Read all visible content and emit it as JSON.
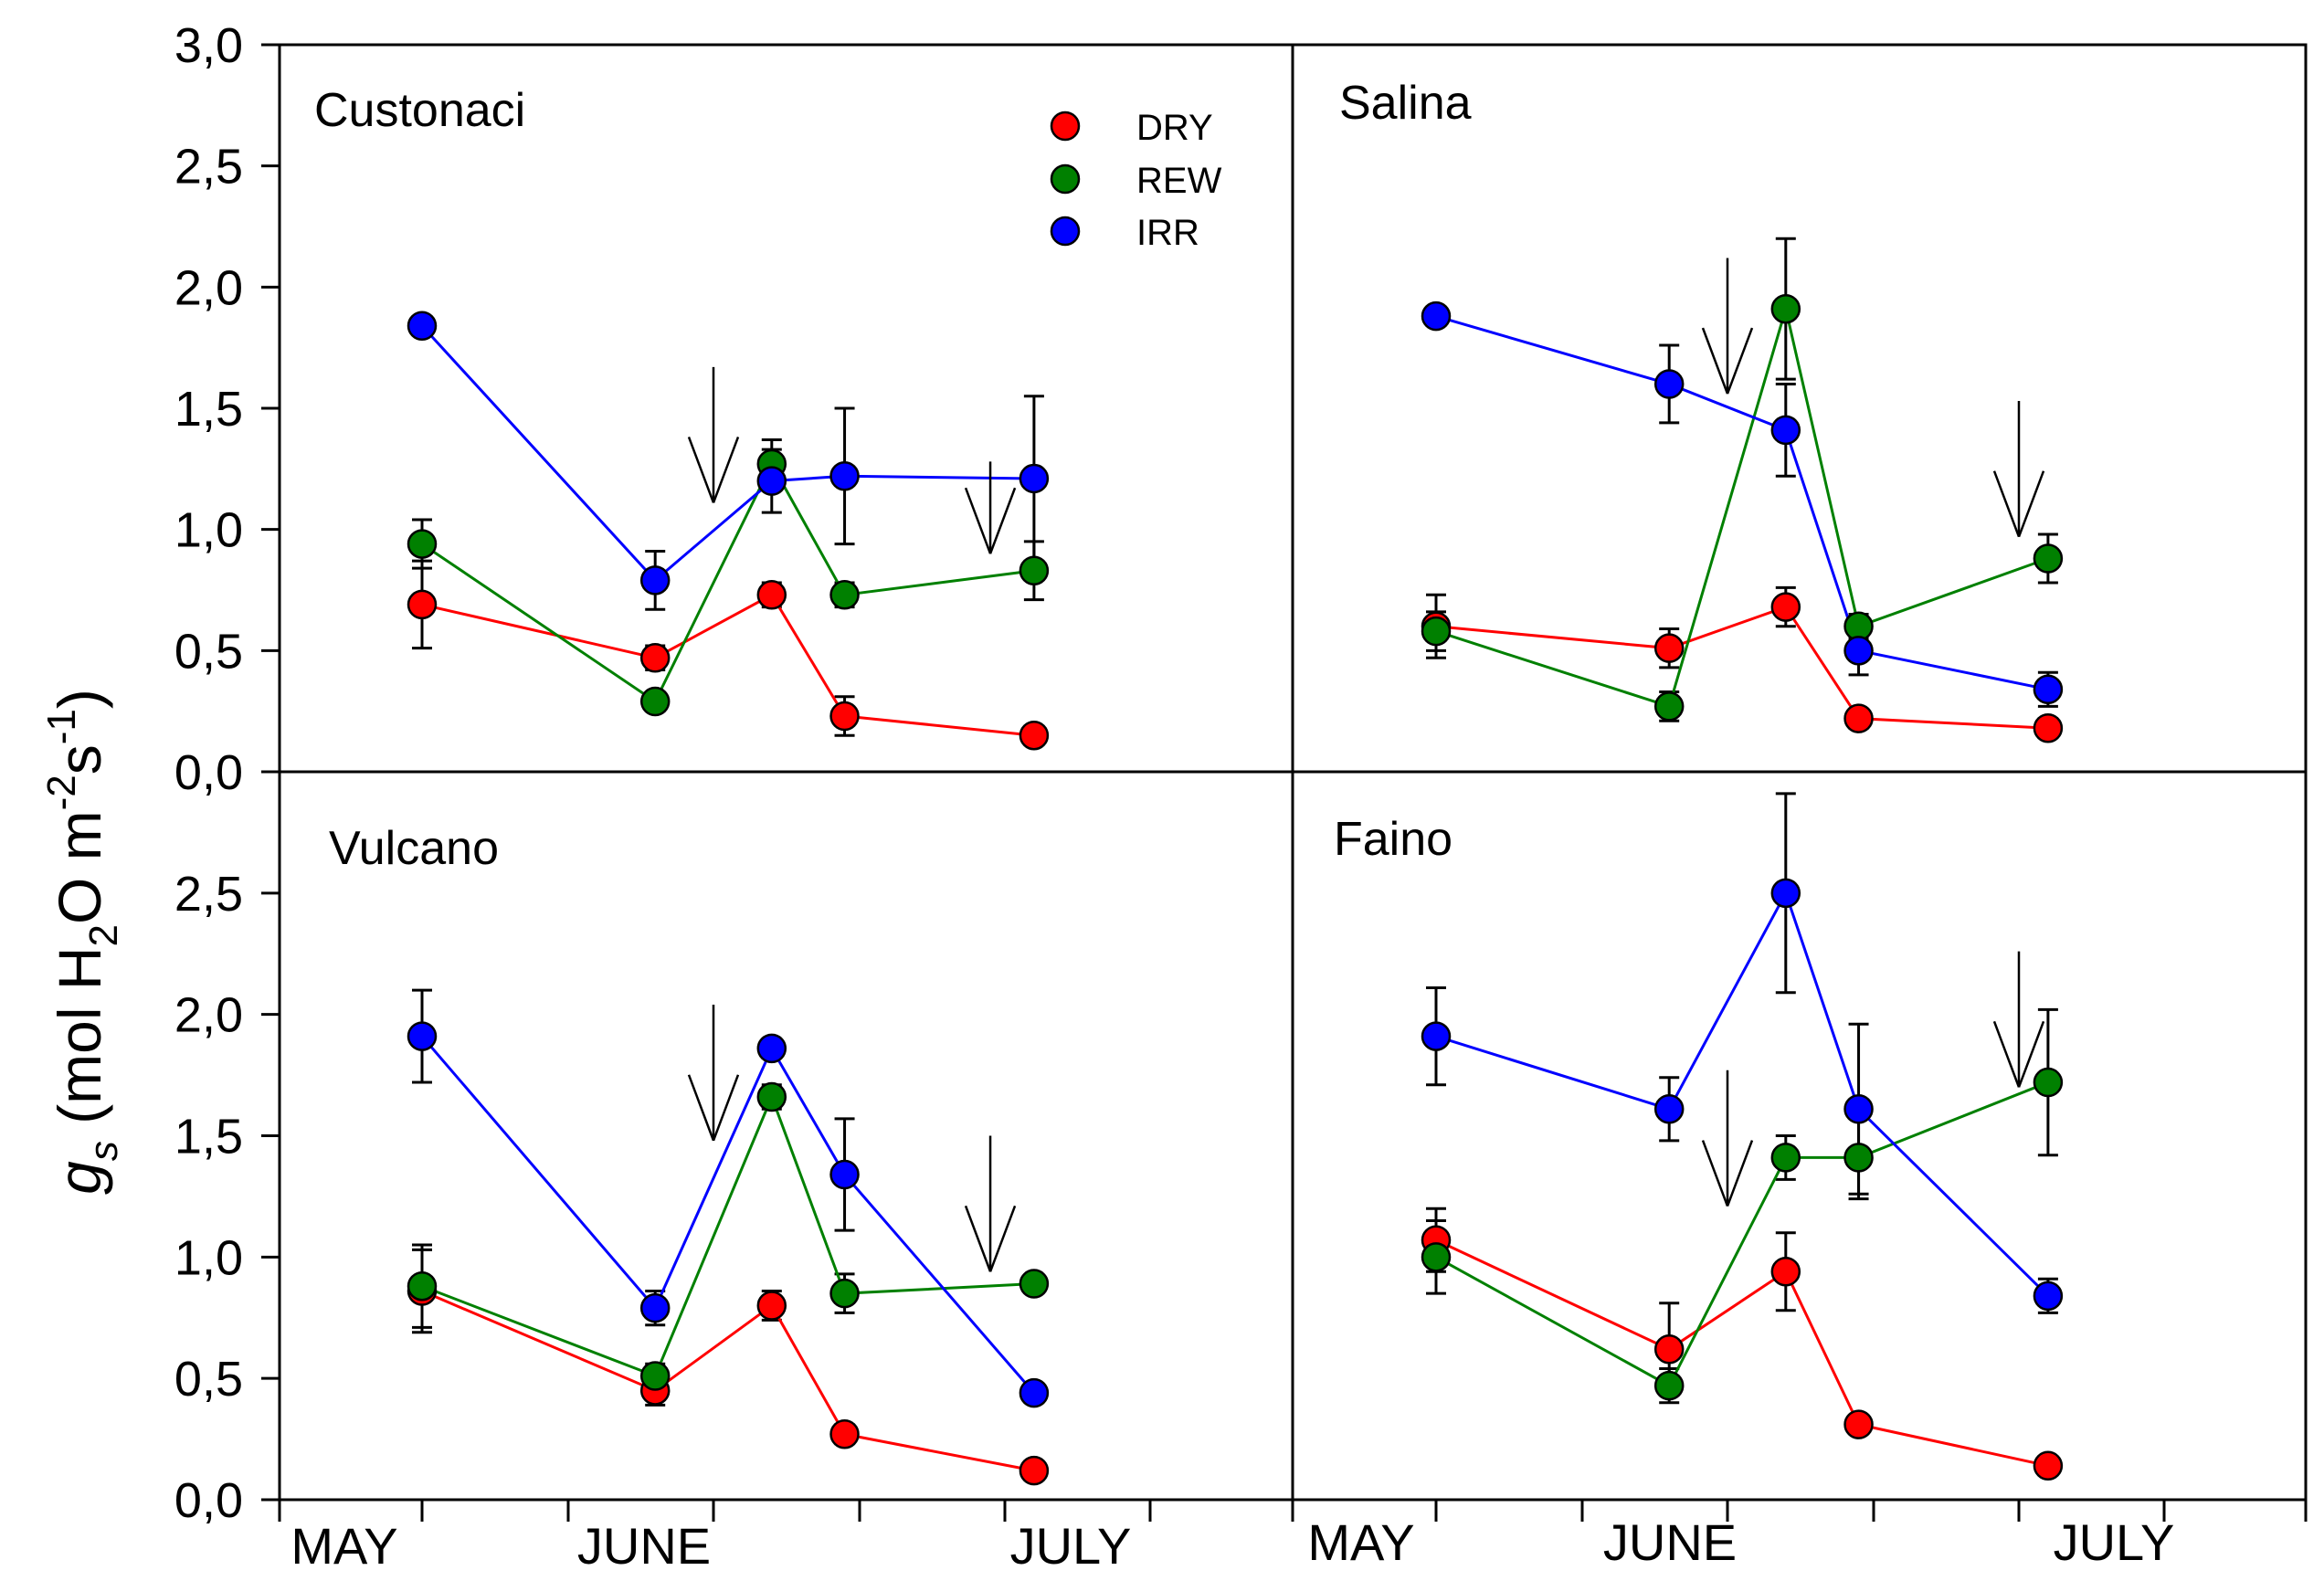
{
  "figure": {
    "ylabel_main": "g",
    "ylabel_sub": "s",
    "ylabel_rest_1": " (mol H",
    "ylabel_sub2": "2",
    "ylabel_rest_2": "O m",
    "ylabel_sup1": "-2",
    "ylabel_rest_3": "s",
    "ylabel_sup2": "-1",
    "ylabel_rest_4": ")",
    "month_labels": [
      "MAY",
      "JUNE",
      "JULY"
    ]
  },
  "legend": [
    {
      "name": "DRY",
      "color": "#ff0000"
    },
    {
      "name": "REW",
      "color": "#008000"
    },
    {
      "name": "IRR",
      "color": "#0000ff"
    }
  ],
  "chart_data": [
    {
      "type": "line",
      "title": "Custonaci",
      "ylim": [
        0,
        3
      ],
      "yticks": [
        "0,0",
        "0,5",
        "1,0",
        "1,5",
        "2,0",
        "2,5",
        "3,0"
      ],
      "x": [
        0,
        1.6,
        2.4,
        2.9,
        4.2
      ],
      "arrows": [
        {
          "x": 2.0,
          "y_top": 1.67,
          "y_tip": 1.11
        },
        {
          "x": 3.9,
          "y_top": 1.28,
          "y_tip": 0.9
        }
      ],
      "series": [
        {
          "name": "DRY",
          "color": "#ff0000",
          "values": [
            0.69,
            0.47,
            0.73,
            0.23,
            0.15
          ],
          "errors": [
            0.18,
            0.05,
            0.05,
            0.08,
            0.02
          ]
        },
        {
          "name": "REW",
          "color": "#008000",
          "values": [
            0.94,
            0.29,
            1.27,
            0.73,
            0.83
          ],
          "errors": [
            0.1,
            0.04,
            0.1,
            0.05,
            0.12
          ]
        },
        {
          "name": "IRR",
          "color": "#0000ff",
          "values": [
            1.84,
            0.79,
            1.2,
            1.22,
            1.21
          ],
          "errors": [
            0.02,
            0.12,
            0.13,
            0.28,
            0.34
          ]
        }
      ]
    },
    {
      "type": "line",
      "title": "Salina",
      "ylim": [
        0,
        3
      ],
      "yticks": [
        "0,0",
        "0,5",
        "1,0",
        "1,5",
        "2,0",
        "2,5",
        "3,0"
      ],
      "x": [
        0,
        1.6,
        2.4,
        2.9,
        4.2
      ],
      "arrows": [
        {
          "x": 2.0,
          "y_top": 2.12,
          "y_tip": 1.56
        },
        {
          "x": 4.0,
          "y_top": 1.53,
          "y_tip": 0.97
        }
      ],
      "series": [
        {
          "name": "DRY",
          "color": "#ff0000",
          "values": [
            0.6,
            0.51,
            0.68,
            0.22,
            0.18
          ],
          "errors": [
            0.13,
            0.08,
            0.08,
            0.04,
            0.04
          ]
        },
        {
          "name": "REW",
          "color": "#008000",
          "values": [
            0.58,
            0.27,
            1.91,
            0.6,
            0.88
          ],
          "errors": [
            0.08,
            0.06,
            0.29,
            0.05,
            0.1
          ]
        },
        {
          "name": "IRR",
          "color": "#0000ff",
          "values": [
            1.88,
            1.6,
            1.41,
            0.5,
            0.34
          ],
          "errors": [
            0.02,
            0.16,
            0.19,
            0.1,
            0.07
          ]
        }
      ]
    },
    {
      "type": "line",
      "title": "Vulcano",
      "ylim": [
        0,
        3
      ],
      "yticks": [
        "0,0",
        "0,5",
        "1,0",
        "1,5",
        "2,0",
        "2,5",
        null
      ],
      "x": [
        0,
        1.6,
        2.4,
        2.9,
        4.2
      ],
      "arrows": [
        {
          "x": 2.0,
          "y_top": 2.04,
          "y_tip": 1.48
        },
        {
          "x": 3.9,
          "y_top": 1.5,
          "y_tip": 0.94
        }
      ],
      "series": [
        {
          "name": "DRY",
          "color": "#ff0000",
          "values": [
            0.86,
            0.45,
            0.8,
            0.27,
            0.12
          ],
          "errors": [
            0.17,
            0.06,
            0.06,
            0.04,
            0.02
          ]
        },
        {
          "name": "REW",
          "color": "#008000",
          "values": [
            0.88,
            0.51,
            1.66,
            0.85,
            0.89
          ],
          "errors": [
            0.17,
            0.05,
            0.05,
            0.08,
            0.02
          ]
        },
        {
          "name": "IRR",
          "color": "#0000ff",
          "values": [
            1.91,
            0.79,
            1.86,
            1.34,
            0.44
          ],
          "errors": [
            0.19,
            0.07,
            0.04,
            0.23,
            0.04
          ]
        }
      ]
    },
    {
      "type": "line",
      "title": "Faino",
      "ylim": [
        0,
        3
      ],
      "yticks": [
        "0,0",
        "0,5",
        "1,0",
        "1,5",
        "2,0",
        "2,5",
        null
      ],
      "x": [
        0,
        1.6,
        2.4,
        2.9,
        4.2
      ],
      "arrows": [
        {
          "x": 2.0,
          "y_top": 1.77,
          "y_tip": 1.21
        },
        {
          "x": 4.0,
          "y_top": 2.26,
          "y_tip": 1.7
        }
      ],
      "series": [
        {
          "name": "DRY",
          "color": "#ff0000",
          "values": [
            1.07,
            0.62,
            0.94,
            0.31,
            0.14
          ],
          "errors": [
            0.13,
            0.19,
            0.16,
            0.03,
            0.02
          ]
        },
        {
          "name": "REW",
          "color": "#008000",
          "values": [
            1.0,
            0.47,
            1.41,
            1.41,
            1.72
          ],
          "errors": [
            0.15,
            0.07,
            0.09,
            0.17,
            0.3
          ]
        },
        {
          "name": "IRR",
          "color": "#0000ff",
          "values": [
            1.91,
            1.61,
            2.5,
            1.61,
            0.84
          ],
          "errors": [
            0.2,
            0.13,
            0.41,
            0.35,
            0.07
          ]
        }
      ]
    }
  ]
}
